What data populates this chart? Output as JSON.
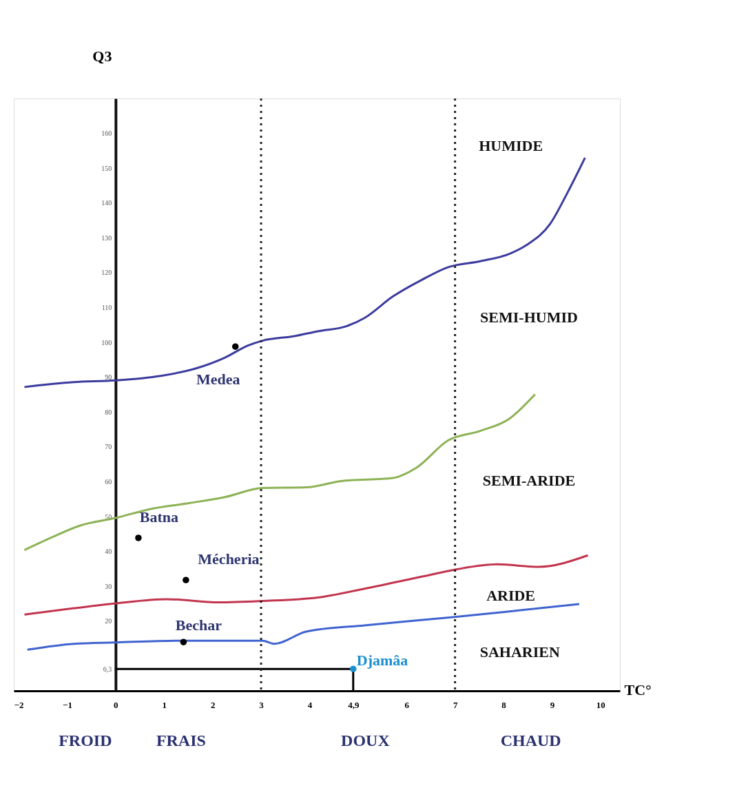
{
  "chart_data": {
    "type": "line",
    "xlabel": "TC°",
    "ylabel": "Q3",
    "xlim": [
      -2.1,
      10.4
    ],
    "ylim": [
      0,
      170
    ],
    "xticks": [
      -2,
      -1,
      0,
      1,
      2,
      3,
      4,
      {
        "value": 4.9,
        "label": "4,9"
      },
      6,
      7,
      8,
      9,
      10
    ],
    "yticks": [
      {
        "value": 6.3,
        "label": "6,3"
      },
      20,
      30,
      40,
      50,
      60,
      70,
      80,
      90,
      100,
      110,
      120,
      130,
      140,
      150,
      160
    ],
    "series": [
      {
        "type": "line",
        "color": "#3b3b9e",
        "x": [
          -1.88,
          -0.86,
          0,
          0.93,
          1.65,
          2.25,
          2.73,
          3.03,
          3.69,
          4.17,
          4.77,
          5.13,
          5.72,
          6.32,
          6.86,
          7.52,
          8.12,
          8.48,
          8.96,
          9.32,
          9.68
        ],
        "values": [
          87.2,
          88.6,
          89.1,
          90.4,
          92.5,
          95.6,
          99.1,
          100.5,
          101.8,
          103.2,
          104.7,
          107,
          113.2,
          118,
          121.6,
          123.3,
          125.4,
          128,
          134,
          143,
          153
        ]
      },
      {
        "type": "line",
        "color": "#8db255",
        "x": [
          -1.88,
          -1.34,
          -0.74,
          0,
          0.69,
          1.53,
          2.25,
          3.03,
          3.93,
          4.65,
          5.72,
          6.2,
          6.86,
          7.52,
          8.12,
          8.65
        ],
        "values": [
          40.4,
          43.9,
          47.4,
          49.6,
          52.1,
          53.9,
          55.6,
          58.2,
          58.4,
          60.2,
          61.1,
          64,
          71.9,
          74.6,
          78.1,
          85.1
        ]
      },
      {
        "color": "#c2344e",
        "x": [
          -1.88,
          -0.86,
          0,
          1.05,
          2.13,
          3.03,
          4.17,
          5.13,
          6.32,
          7.04,
          7.88,
          8.72,
          9.74
        ],
        "values": [
          21.9,
          23.7,
          25.1,
          26.3,
          25.4,
          25.8,
          26.8,
          29.3,
          32.8,
          34.9,
          36.3,
          35.6,
          38.9
        ]
      },
      {
        "color": "#3f63d0",
        "x": [
          -1.82,
          -0.86,
          0,
          1.29,
          2.13,
          3.03,
          3.27,
          3.93,
          5.13,
          6.92,
          8.12,
          9.56
        ],
        "values": [
          11.8,
          13.5,
          13.9,
          14.4,
          14.4,
          14.4,
          13.5,
          17,
          18.8,
          21.1,
          22.8,
          24.9
        ]
      },
      {
        "color": "#000000",
        "x": [
          0,
          4.9,
          4.9
        ],
        "values": [
          6.3,
          6.3,
          0
        ]
      },
      {
        "type": "scatter",
        "name": "Medea",
        "color": "#000000",
        "x": [
          2.47
        ],
        "values": [
          98.8
        ]
      },
      {
        "type": "scatter",
        "name": "Batna",
        "color": "#000000",
        "x": [
          0.47
        ],
        "values": [
          43.9
        ]
      },
      {
        "type": "scatter",
        "name": "Mécheria",
        "color": "#000000",
        "x": [
          1.45
        ],
        "values": [
          31.8
        ]
      },
      {
        "type": "scatter",
        "name": "Bechar",
        "color": "#000000",
        "x": [
          1.4
        ],
        "values": [
          14
        ]
      },
      {
        "type": "scatter",
        "name": "Djamâa",
        "color": "#1a8fd0",
        "x": [
          4.9
        ],
        "values": [
          6.3
        ]
      }
    ],
    "ref_lines": [
      {
        "axis": "x",
        "value": 3,
        "color": "#222222",
        "line_style": "dotted"
      },
      {
        "axis": "x",
        "value": 7,
        "color": "#222222",
        "line_style": "dotted"
      }
    ],
    "annotations": [
      "HUMIDE",
      "SEMI-HUMID",
      "SEMI-ARIDE",
      "ARIDE",
      "SAHARIEN",
      "FROID",
      "FRAIS",
      "DOUX",
      "CHAUD"
    ]
  }
}
